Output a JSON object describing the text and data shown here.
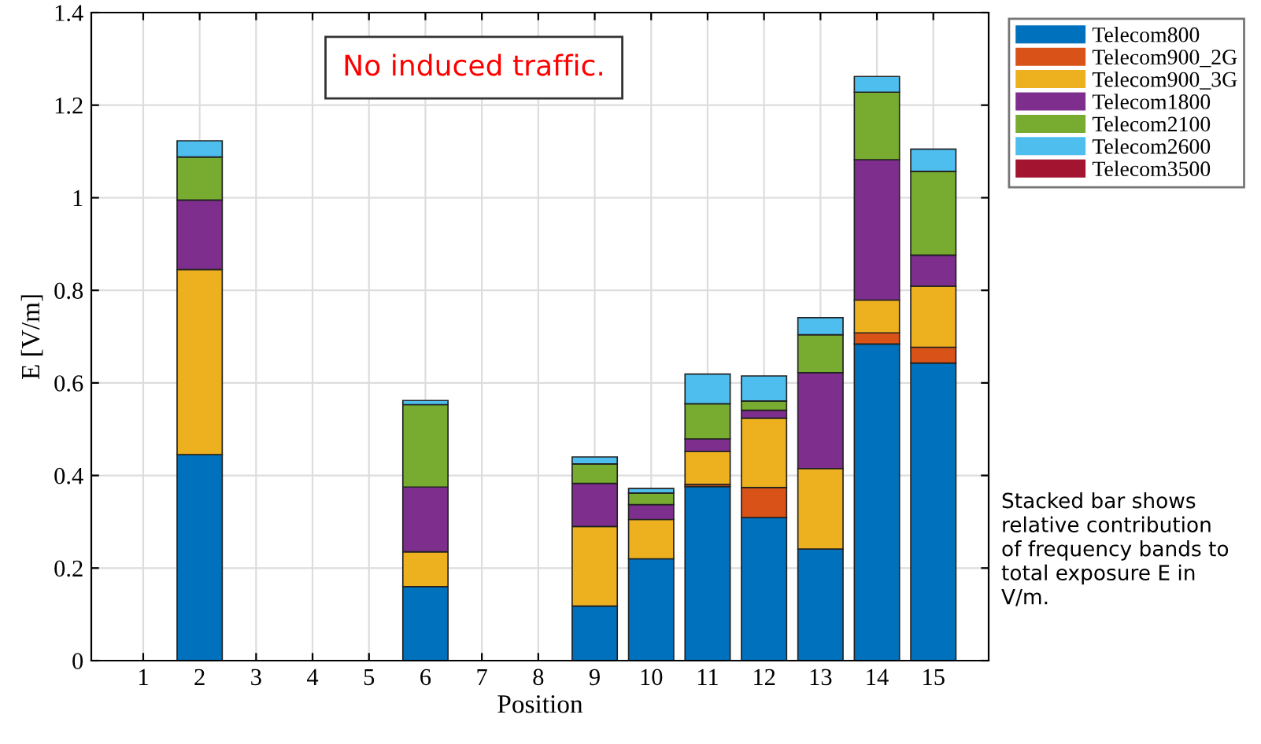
{
  "chart_data": {
    "type": "bar",
    "stacked": true,
    "xlabel": "Position",
    "ylabel": "E [V/m]",
    "categories": [
      "1",
      "2",
      "3",
      "4",
      "5",
      "6",
      "7",
      "8",
      "9",
      "10",
      "11",
      "12",
      "13",
      "14",
      "15"
    ],
    "series": [
      {
        "name": "Telecom800",
        "color": "#0072bd",
        "values": [
          0,
          0.445,
          0,
          0,
          0,
          0.16,
          0,
          0,
          0.118,
          0.22,
          0.376,
          0.309,
          0.241,
          0.684,
          0.643
        ]
      },
      {
        "name": "Telecom900_2G",
        "color": "#d95319",
        "values": [
          0,
          0,
          0,
          0,
          0,
          0,
          0,
          0,
          0,
          0,
          0.005,
          0.065,
          0,
          0.024,
          0.034
        ]
      },
      {
        "name": "Telecom900_3G",
        "color": "#edb120",
        "values": [
          0,
          0.4,
          0,
          0,
          0,
          0.075,
          0,
          0,
          0.172,
          0.085,
          0.071,
          0.15,
          0.174,
          0.071,
          0.132
        ]
      },
      {
        "name": "Telecom1800",
        "color": "#7e2f8e",
        "values": [
          0,
          0.15,
          0,
          0,
          0,
          0.14,
          0,
          0,
          0.093,
          0.032,
          0.027,
          0.017,
          0.207,
          0.303,
          0.067
        ]
      },
      {
        "name": "Telecom2100",
        "color": "#77ac30",
        "values": [
          0,
          0.093,
          0,
          0,
          0,
          0.178,
          0,
          0,
          0.042,
          0.025,
          0.076,
          0.02,
          0.082,
          0.146,
          0.181
        ]
      },
      {
        "name": "Telecom2600",
        "color": "#4dbeee",
        "values": [
          0,
          0.035,
          0,
          0,
          0,
          0.009,
          0,
          0,
          0.015,
          0.01,
          0.064,
          0.054,
          0.037,
          0.034,
          0.048
        ]
      },
      {
        "name": "Telecom3500",
        "color": "#a2142f",
        "values": [
          0,
          0,
          0,
          0,
          0,
          0,
          0,
          0,
          0,
          0,
          0,
          0,
          0,
          0,
          0
        ]
      }
    ],
    "ylim": [
      0,
      1.4
    ],
    "yticks": [
      0,
      0.2,
      0.4,
      0.6,
      0.8,
      1,
      1.2,
      1.4
    ],
    "grid": true,
    "legend": "top right",
    "annotations": [
      "No induced traffic.",
      "Stacked bar shows\nrelative contribution\nof frequency bands to\ntotal exposure E in\nV/m."
    ]
  }
}
